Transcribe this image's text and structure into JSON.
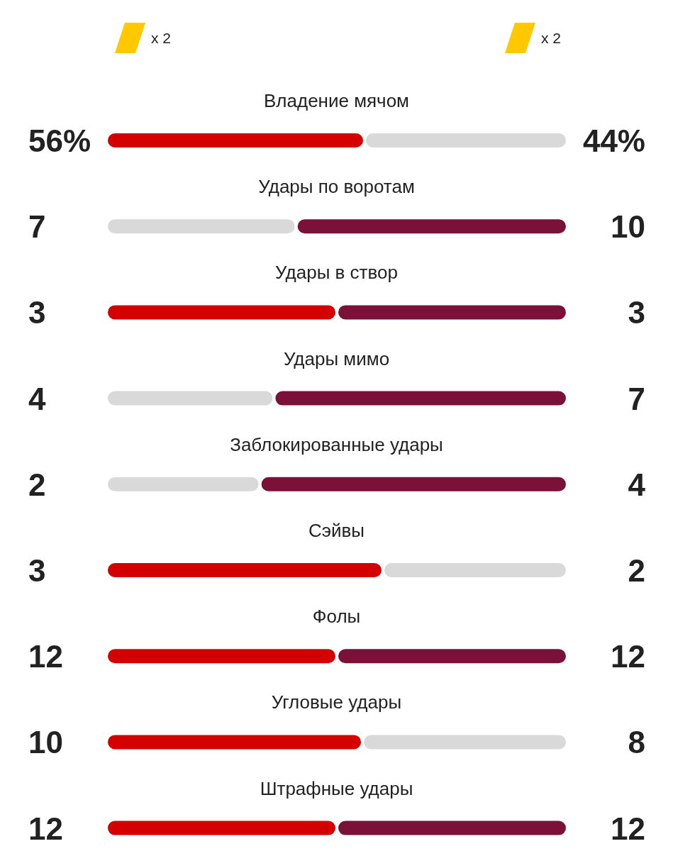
{
  "chart_data": [
    {
      "type": "other",
      "annotations": [
        "x 2",
        "x 2"
      ]
    },
    {
      "type": "bar",
      "orientation": "horizontal",
      "stacked": true,
      "title": "Владение мячом",
      "categories": [
        null
      ],
      "series": [
        {
          "values": [
            56
          ],
          "value_labels": [
            "56%"
          ],
          "color": "#d40000"
        },
        {
          "values": [
            44
          ],
          "value_labels": [
            "44%"
          ],
          "color": "#d9d9d9"
        }
      ]
    },
    {
      "type": "bar",
      "orientation": "horizontal",
      "stacked": true,
      "title": "Удары по воротам",
      "categories": [
        null
      ],
      "series": [
        {
          "values": [
            7
          ],
          "value_labels": [
            "7"
          ],
          "color": "#d9d9d9"
        },
        {
          "values": [
            10
          ],
          "value_labels": [
            "10"
          ],
          "color": "#7b1038"
        }
      ]
    },
    {
      "type": "bar",
      "orientation": "horizontal",
      "stacked": true,
      "title": "Удары в створ",
      "categories": [
        null
      ],
      "series": [
        {
          "values": [
            3
          ],
          "value_labels": [
            "3"
          ],
          "color": "#d40000"
        },
        {
          "values": [
            3
          ],
          "value_labels": [
            "3"
          ],
          "color": "#7b1038"
        }
      ]
    },
    {
      "type": "bar",
      "orientation": "horizontal",
      "stacked": true,
      "title": "Удары мимо",
      "categories": [
        null
      ],
      "series": [
        {
          "values": [
            4
          ],
          "value_labels": [
            "4"
          ],
          "color": "#d9d9d9"
        },
        {
          "values": [
            7
          ],
          "value_labels": [
            "7"
          ],
          "color": "#7b1038"
        }
      ]
    },
    {
      "type": "bar",
      "orientation": "horizontal",
      "stacked": true,
      "title": "Заблокированные удары",
      "categories": [
        null
      ],
      "series": [
        {
          "values": [
            2
          ],
          "value_labels": [
            "2"
          ],
          "color": "#d9d9d9"
        },
        {
          "values": [
            4
          ],
          "value_labels": [
            "4"
          ],
          "color": "#7b1038"
        }
      ]
    },
    {
      "type": "bar",
      "orientation": "horizontal",
      "stacked": true,
      "title": "Сэйвы",
      "categories": [
        null
      ],
      "series": [
        {
          "values": [
            3
          ],
          "value_labels": [
            "3"
          ],
          "color": "#d40000"
        },
        {
          "values": [
            2
          ],
          "value_labels": [
            "2"
          ],
          "color": "#d9d9d9"
        }
      ]
    },
    {
      "type": "bar",
      "orientation": "horizontal",
      "stacked": true,
      "title": "Фолы",
      "categories": [
        null
      ],
      "series": [
        {
          "values": [
            12
          ],
          "value_labels": [
            "12"
          ],
          "color": "#d40000"
        },
        {
          "values": [
            12
          ],
          "value_labels": [
            "12"
          ],
          "color": "#7b1038"
        }
      ]
    },
    {
      "type": "bar",
      "orientation": "horizontal",
      "stacked": true,
      "title": "Угловые удары",
      "categories": [
        null
      ],
      "series": [
        {
          "values": [
            10
          ],
          "value_labels": [
            "10"
          ],
          "color": "#d40000"
        },
        {
          "values": [
            8
          ],
          "value_labels": [
            "8"
          ],
          "color": "#d9d9d9"
        }
      ]
    },
    {
      "type": "bar",
      "orientation": "horizontal",
      "stacked": true,
      "title": "Штрафные удары",
      "categories": [
        null
      ],
      "series": [
        {
          "values": [
            12
          ],
          "value_labels": [
            "12"
          ],
          "color": "#d40000"
        },
        {
          "values": [
            12
          ],
          "value_labels": [
            "12"
          ],
          "color": "#7b1038"
        }
      ]
    }
  ]
}
